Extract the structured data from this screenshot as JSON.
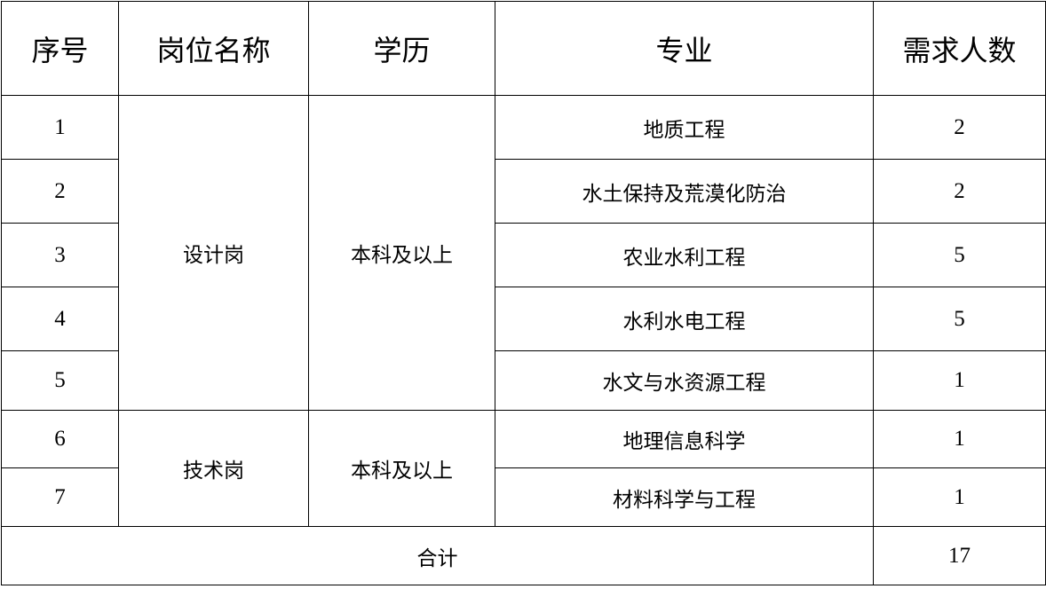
{
  "headers": [
    "序号",
    "岗位名称",
    "学历",
    "专业",
    "需求人数"
  ],
  "groups": [
    {
      "position": "设计岗",
      "education": "本科及以上"
    },
    {
      "position": "技术岗",
      "education": "本科及以上"
    }
  ],
  "rows": [
    {
      "no": "1",
      "major": "地质工程",
      "count": "2"
    },
    {
      "no": "2",
      "major": "水土保持及荒漠化防治",
      "count": "2"
    },
    {
      "no": "3",
      "major": "农业水利工程",
      "count": "5"
    },
    {
      "no": "4",
      "major": "水利水电工程",
      "count": "5"
    },
    {
      "no": "5",
      "major": "水文与水资源工程",
      "count": "1"
    },
    {
      "no": "6",
      "major": "地理信息科学",
      "count": "1"
    },
    {
      "no": "7",
      "major": "材料科学与工程",
      "count": "1"
    }
  ],
  "total": {
    "label": "合计",
    "count": "17"
  }
}
